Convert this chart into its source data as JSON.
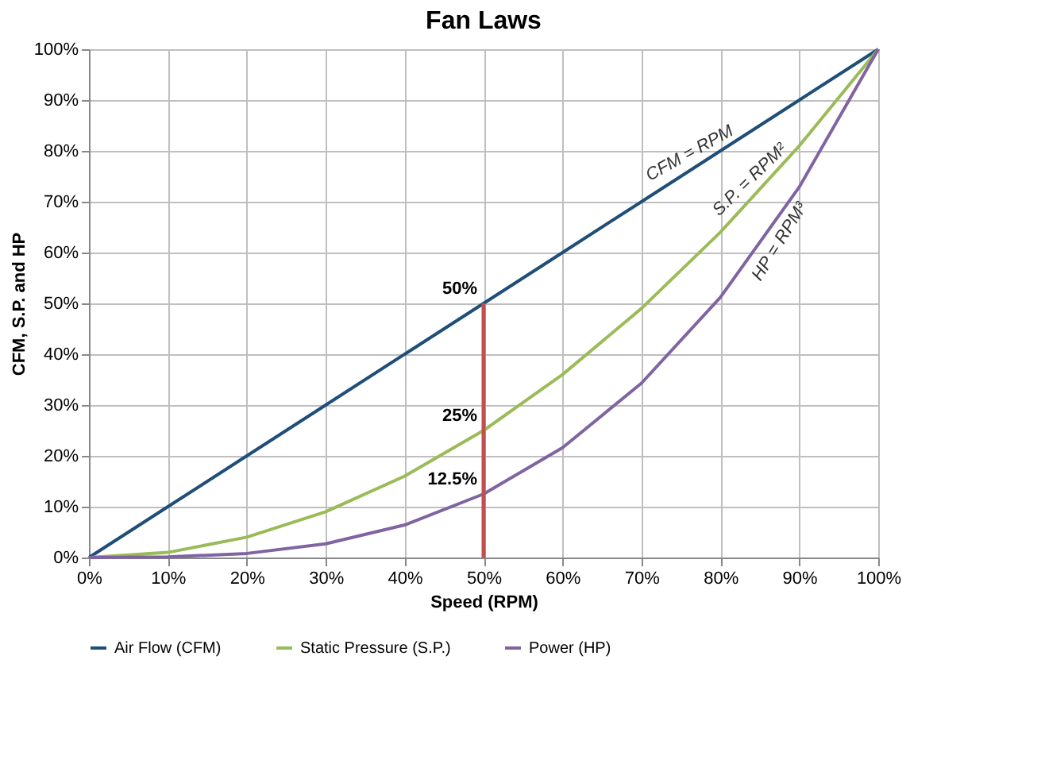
{
  "chart_data": {
    "type": "line",
    "title": "Fan Laws",
    "xlabel": "Speed (RPM)",
    "ylabel": "CFM, S.P. and HP",
    "x": [
      0,
      10,
      20,
      30,
      40,
      50,
      60,
      70,
      80,
      90,
      100
    ],
    "series": [
      {
        "name": "Air Flow (CFM)",
        "color": "#1f4e79",
        "values": [
          0,
          10,
          20,
          30,
          40,
          50,
          60,
          70,
          80,
          90,
          100
        ]
      },
      {
        "name": "Static Pressure (S.P.)",
        "color": "#9bbb59",
        "values": [
          0,
          1,
          4,
          9,
          16,
          25,
          36,
          49,
          64,
          81,
          100
        ]
      },
      {
        "name": "Power (HP)",
        "color": "#8064a2",
        "values": [
          0,
          0.1,
          0.8,
          2.7,
          6.4,
          12.5,
          21.6,
          34.3,
          51.2,
          72.9,
          100
        ]
      },
      {
        "type": "line",
        "color": "#c0504d",
        "x": [
          50,
          50
        ],
        "values": [
          0,
          50
        ]
      }
    ],
    "xlim": [
      0,
      100
    ],
    "ylim": [
      0,
      100
    ],
    "xticks": [
      {
        "value": 0,
        "label": "0%"
      },
      {
        "value": 10,
        "label": "10%"
      },
      {
        "value": 20,
        "label": "20%"
      },
      {
        "value": 30,
        "label": "30%"
      },
      {
        "value": 40,
        "label": "40%"
      },
      {
        "value": 50,
        "label": "50%"
      },
      {
        "value": 60,
        "label": "60%"
      },
      {
        "value": 70,
        "label": "70%"
      },
      {
        "value": 80,
        "label": "80%"
      },
      {
        "value": 90,
        "label": "90%"
      },
      {
        "value": 100,
        "label": "100%"
      }
    ],
    "yticks": [
      {
        "value": 0,
        "label": "0%"
      },
      {
        "value": 10,
        "label": "10%"
      },
      {
        "value": 20,
        "label": "20%"
      },
      {
        "value": 30,
        "label": "30%"
      },
      {
        "value": 40,
        "label": "40%"
      },
      {
        "value": 50,
        "label": "50%"
      },
      {
        "value": 60,
        "label": "60%"
      },
      {
        "value": 70,
        "label": "70%"
      },
      {
        "value": 80,
        "label": "80%"
      },
      {
        "value": 90,
        "label": "90%"
      },
      {
        "value": 100,
        "label": "100%"
      }
    ],
    "annotations": [
      {
        "text": "50%",
        "x": 50,
        "y": 50
      },
      {
        "text": "25%",
        "x": 50,
        "y": 25
      },
      {
        "text": "12.5%",
        "x": 50,
        "y": 12.5
      },
      {
        "text": "CFM = RPM",
        "x": 77,
        "y": 77
      },
      {
        "text": "S.P. = RPM²",
        "x": 85,
        "y": 72.25
      },
      {
        "text": "HP = RPM³",
        "x": 86,
        "y": 63.6
      }
    ],
    "grid": true,
    "legend": "bottom",
    "marker": "none",
    "line_style": "solid"
  }
}
